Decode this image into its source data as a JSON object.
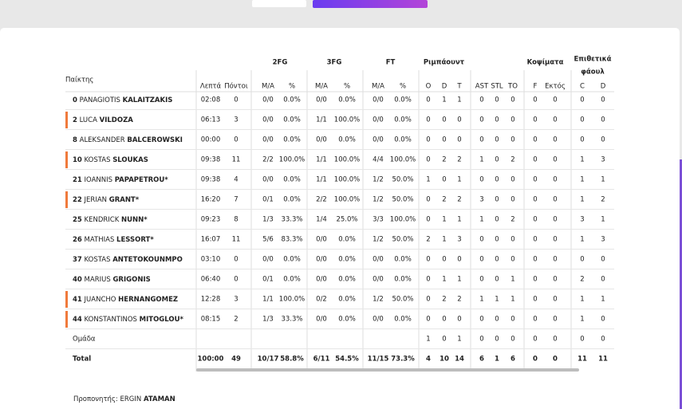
{
  "table": {
    "player_header": "Παίκτης",
    "groups": [
      "2FG",
      "3FG",
      "FT",
      "Ριμπάουντ",
      "Κοψίματα",
      [
        "Επιθετικά",
        "φάουλ"
      ]
    ],
    "columns": [
      "Λεπτά",
      "Πόντοι",
      "M/A",
      "%",
      "M/A",
      "%",
      "M/A",
      "%",
      "O",
      "D",
      "T",
      "AST",
      "STL",
      "TO",
      "F",
      "Εκτός",
      "C",
      "D"
    ],
    "rows": [
      {
        "number": "0",
        "first": "PANAGIOTIS",
        "last": "KALAITZAKIS",
        "marked": false,
        "cells": [
          "02:08",
          "0",
          "0/0",
          "0.0%",
          "0/0",
          "0.0%",
          "0/0",
          "0.0%",
          "0",
          "1",
          "1",
          "0",
          "0",
          "0",
          "0",
          "0",
          "0",
          "0"
        ]
      },
      {
        "number": "2",
        "first": "LUCA",
        "last": "VILDOZA",
        "marked": true,
        "cells": [
          "06:13",
          "3",
          "0/0",
          "0.0%",
          "1/1",
          "100.0%",
          "0/0",
          "0.0%",
          "0",
          "0",
          "0",
          "0",
          "0",
          "0",
          "0",
          "0",
          "0",
          "0"
        ]
      },
      {
        "number": "8",
        "first": "ALEKSANDER",
        "last": "BALCEROWSKI",
        "marked": false,
        "cells": [
          "00:00",
          "0",
          "0/0",
          "0.0%",
          "0/0",
          "0.0%",
          "0/0",
          "0.0%",
          "0",
          "0",
          "0",
          "0",
          "0",
          "0",
          "0",
          "0",
          "0",
          "0"
        ]
      },
      {
        "number": "10",
        "first": "KOSTAS",
        "last": "SLOUKAS",
        "marked": true,
        "cells": [
          "09:38",
          "11",
          "2/2",
          "100.0%",
          "1/1",
          "100.0%",
          "4/4",
          "100.0%",
          "0",
          "2",
          "2",
          "1",
          "0",
          "2",
          "0",
          "0",
          "1",
          "3"
        ]
      },
      {
        "number": "21",
        "first": "IOANNIS",
        "last": "PAPAPETROU*",
        "marked": false,
        "cells": [
          "09:38",
          "4",
          "0/0",
          "0.0%",
          "1/1",
          "100.0%",
          "1/2",
          "50.0%",
          "1",
          "0",
          "1",
          "0",
          "0",
          "0",
          "0",
          "0",
          "1",
          "1"
        ]
      },
      {
        "number": "22",
        "first": "JERIAN",
        "last": "GRANT*",
        "marked": true,
        "cells": [
          "16:20",
          "7",
          "0/1",
          "0.0%",
          "2/2",
          "100.0%",
          "1/2",
          "50.0%",
          "0",
          "2",
          "2",
          "3",
          "0",
          "0",
          "0",
          "0",
          "1",
          "2"
        ]
      },
      {
        "number": "25",
        "first": "KENDRICK",
        "last": "NUNN*",
        "marked": false,
        "cells": [
          "09:23",
          "8",
          "1/3",
          "33.3%",
          "1/4",
          "25.0%",
          "3/3",
          "100.0%",
          "0",
          "1",
          "1",
          "1",
          "0",
          "2",
          "0",
          "0",
          "3",
          "1"
        ]
      },
      {
        "number": "26",
        "first": "MATHIAS",
        "last": "LESSORT*",
        "marked": false,
        "cells": [
          "16:07",
          "11",
          "5/6",
          "83.3%",
          "0/0",
          "0.0%",
          "1/2",
          "50.0%",
          "2",
          "1",
          "3",
          "0",
          "0",
          "0",
          "0",
          "0",
          "1",
          "3"
        ]
      },
      {
        "number": "37",
        "first": "KOSTAS",
        "last": "ANTETOKOUNMPO",
        "marked": false,
        "cells": [
          "03:10",
          "0",
          "0/0",
          "0.0%",
          "0/0",
          "0.0%",
          "0/0",
          "0.0%",
          "0",
          "0",
          "0",
          "0",
          "0",
          "0",
          "0",
          "0",
          "0",
          "0"
        ]
      },
      {
        "number": "40",
        "first": "MARIUS",
        "last": "GRIGONIS",
        "marked": false,
        "cells": [
          "06:40",
          "0",
          "0/1",
          "0.0%",
          "0/0",
          "0.0%",
          "0/0",
          "0.0%",
          "0",
          "1",
          "1",
          "0",
          "0",
          "1",
          "0",
          "0",
          "2",
          "0"
        ]
      },
      {
        "number": "41",
        "first": "JUANCHO",
        "last": "HERNANGOMEZ",
        "marked": true,
        "cells": [
          "12:28",
          "3",
          "1/1",
          "100.0%",
          "0/2",
          "0.0%",
          "1/2",
          "50.0%",
          "0",
          "2",
          "2",
          "1",
          "1",
          "1",
          "0",
          "0",
          "1",
          "1"
        ]
      },
      {
        "number": "44",
        "first": "KONSTANTINOS",
        "last": "MITOGLOU*",
        "marked": true,
        "cells": [
          "08:15",
          "2",
          "1/3",
          "33.3%",
          "0/0",
          "0.0%",
          "0/0",
          "0.0%",
          "0",
          "0",
          "0",
          "0",
          "0",
          "0",
          "0",
          "0",
          "1",
          "0"
        ]
      }
    ],
    "team": {
      "label": "Ομάδα",
      "cells": [
        null,
        null,
        null,
        null,
        null,
        null,
        null,
        null,
        "1",
        "0",
        "1",
        "0",
        "0",
        "0",
        "0",
        "0",
        "0",
        "0"
      ]
    },
    "total": {
      "label": "Total",
      "cells": [
        "100:00",
        "49",
        "10/17",
        "58.8%",
        "6/11",
        "54.5%",
        "11/15",
        "73.3%",
        "4",
        "10",
        "14",
        "6",
        "1",
        "6",
        "0",
        "0",
        "11",
        "11"
      ]
    }
  },
  "coach": {
    "label": "Προπονητής:",
    "first": "ERGIN",
    "last": "ATAMAN"
  }
}
